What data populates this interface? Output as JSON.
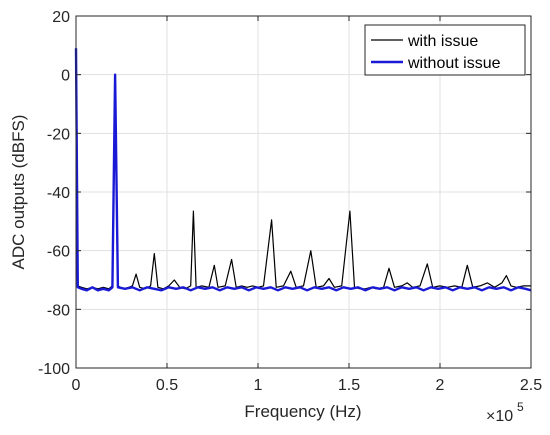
{
  "chart_data": {
    "type": "line",
    "title": "",
    "xlabel": "Frequency (Hz)",
    "ylabel": "ADC outputs (dBFS)",
    "x_exponent_label": "×10",
    "x_exponent_power": "5",
    "xlim": [
      0,
      2.5
    ],
    "ylim": [
      -100,
      20
    ],
    "x_ticks": [
      "0",
      "0.5",
      "1",
      "1.5",
      "2",
      "2.5"
    ],
    "x_tick_values": [
      0,
      0.5,
      1,
      1.5,
      2,
      2.5
    ],
    "y_ticks": [
      "20",
      "0",
      "-20",
      "-40",
      "-60",
      "-80",
      "-100"
    ],
    "y_tick_values": [
      20,
      0,
      -20,
      -40,
      -60,
      -80,
      -100
    ],
    "x_unit_note": "x values in units of 1e5 Hz",
    "grid": true,
    "legend_position": "top-right",
    "colors": {
      "with_issue": "#000000",
      "without_issue": "#1a1ad6"
    },
    "series": [
      {
        "name": "with issue",
        "points": [
          [
            0.0,
            9
          ],
          [
            0.01,
            -72
          ],
          [
            0.03,
            -72.5
          ],
          [
            0.06,
            -73
          ],
          [
            0.09,
            -72.5
          ],
          [
            0.12,
            -73
          ],
          [
            0.15,
            -72.5
          ],
          [
            0.18,
            -73
          ],
          [
            0.2,
            -72
          ],
          [
            0.215,
            0
          ],
          [
            0.23,
            -72
          ],
          [
            0.26,
            -73
          ],
          [
            0.29,
            -72.5
          ],
          [
            0.31,
            -72
          ],
          [
            0.33,
            -68
          ],
          [
            0.35,
            -72.5
          ],
          [
            0.38,
            -73
          ],
          [
            0.41,
            -72
          ],
          [
            0.43,
            -61
          ],
          [
            0.45,
            -72.5
          ],
          [
            0.48,
            -73
          ],
          [
            0.51,
            -72
          ],
          [
            0.54,
            -70
          ],
          [
            0.57,
            -72.5
          ],
          [
            0.6,
            -73
          ],
          [
            0.63,
            -72
          ],
          [
            0.645,
            -46.5
          ],
          [
            0.66,
            -72.5
          ],
          [
            0.69,
            -72
          ],
          [
            0.73,
            -72.5
          ],
          [
            0.76,
            -65
          ],
          [
            0.78,
            -72.5
          ],
          [
            0.82,
            -72
          ],
          [
            0.855,
            -63
          ],
          [
            0.88,
            -72.5
          ],
          [
            0.91,
            -72
          ],
          [
            0.94,
            -72.5
          ],
          [
            0.97,
            -72
          ],
          [
            1.0,
            -72.5
          ],
          [
            1.03,
            -72
          ],
          [
            1.075,
            -49.5
          ],
          [
            1.1,
            -72.5
          ],
          [
            1.14,
            -72
          ],
          [
            1.18,
            -67
          ],
          [
            1.21,
            -72.5
          ],
          [
            1.25,
            -72
          ],
          [
            1.29,
            -60
          ],
          [
            1.32,
            -72.5
          ],
          [
            1.36,
            -72
          ],
          [
            1.39,
            -69.5
          ],
          [
            1.42,
            -72.5
          ],
          [
            1.46,
            -72
          ],
          [
            1.505,
            -46.5
          ],
          [
            1.53,
            -72.5
          ],
          [
            1.56,
            -73
          ],
          [
            1.59,
            -73
          ],
          [
            1.62,
            -72.5
          ],
          [
            1.65,
            -73
          ],
          [
            1.69,
            -72.5
          ],
          [
            1.72,
            -66
          ],
          [
            1.75,
            -72.5
          ],
          [
            1.79,
            -72
          ],
          [
            1.82,
            -71
          ],
          [
            1.85,
            -72.5
          ],
          [
            1.89,
            -72
          ],
          [
            1.93,
            -64.5
          ],
          [
            1.96,
            -72.5
          ],
          [
            2.0,
            -72
          ],
          [
            2.04,
            -72.5
          ],
          [
            2.08,
            -72
          ],
          [
            2.12,
            -72.5
          ],
          [
            2.15,
            -65
          ],
          [
            2.18,
            -72.5
          ],
          [
            2.22,
            -72
          ],
          [
            2.26,
            -71
          ],
          [
            2.3,
            -72.5
          ],
          [
            2.34,
            -71
          ],
          [
            2.365,
            -68.5
          ],
          [
            2.39,
            -72
          ],
          [
            2.42,
            -72.5
          ],
          [
            2.46,
            -72
          ],
          [
            2.5,
            -72
          ]
        ]
      },
      {
        "name": "without issue",
        "points": [
          [
            0.0,
            9
          ],
          [
            0.01,
            -72.5
          ],
          [
            0.03,
            -73
          ],
          [
            0.06,
            -73.5
          ],
          [
            0.09,
            -72.5
          ],
          [
            0.12,
            -73.5
          ],
          [
            0.15,
            -73
          ],
          [
            0.18,
            -73.5
          ],
          [
            0.2,
            -72.5
          ],
          [
            0.215,
            0
          ],
          [
            0.23,
            -72.5
          ],
          [
            0.27,
            -73
          ],
          [
            0.31,
            -72.5
          ],
          [
            0.35,
            -73.5
          ],
          [
            0.39,
            -72.5
          ],
          [
            0.43,
            -73
          ],
          [
            0.47,
            -73.5
          ],
          [
            0.51,
            -72.5
          ],
          [
            0.55,
            -73
          ],
          [
            0.59,
            -72.5
          ],
          [
            0.63,
            -73.5
          ],
          [
            0.67,
            -72.5
          ],
          [
            0.71,
            -73
          ],
          [
            0.75,
            -72.5
          ],
          [
            0.79,
            -73.5
          ],
          [
            0.83,
            -72.5
          ],
          [
            0.87,
            -73
          ],
          [
            0.91,
            -72.5
          ],
          [
            0.95,
            -73.5
          ],
          [
            0.99,
            -72.5
          ],
          [
            1.03,
            -73
          ],
          [
            1.07,
            -72.5
          ],
          [
            1.11,
            -73.5
          ],
          [
            1.15,
            -72.5
          ],
          [
            1.19,
            -73
          ],
          [
            1.23,
            -72.5
          ],
          [
            1.27,
            -73.5
          ],
          [
            1.31,
            -72.5
          ],
          [
            1.35,
            -73
          ],
          [
            1.39,
            -72.5
          ],
          [
            1.43,
            -73.5
          ],
          [
            1.47,
            -72.5
          ],
          [
            1.51,
            -73
          ],
          [
            1.55,
            -72.5
          ],
          [
            1.59,
            -73.5
          ],
          [
            1.63,
            -72.5
          ],
          [
            1.67,
            -73
          ],
          [
            1.71,
            -72.5
          ],
          [
            1.75,
            -73.5
          ],
          [
            1.79,
            -72.5
          ],
          [
            1.83,
            -73
          ],
          [
            1.87,
            -72.5
          ],
          [
            1.91,
            -73.5
          ],
          [
            1.95,
            -72.5
          ],
          [
            1.99,
            -73
          ],
          [
            2.03,
            -72.5
          ],
          [
            2.07,
            -73.5
          ],
          [
            2.11,
            -72.5
          ],
          [
            2.15,
            -73
          ],
          [
            2.19,
            -72.5
          ],
          [
            2.23,
            -73.5
          ],
          [
            2.27,
            -72.5
          ],
          [
            2.31,
            -73
          ],
          [
            2.35,
            -72.5
          ],
          [
            2.39,
            -73.5
          ],
          [
            2.43,
            -72.5
          ],
          [
            2.47,
            -73
          ],
          [
            2.5,
            -73.5
          ]
        ]
      }
    ]
  }
}
